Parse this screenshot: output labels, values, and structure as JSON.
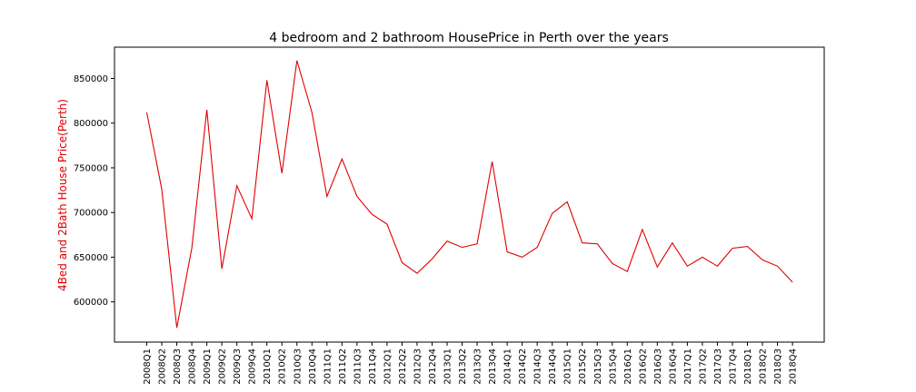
{
  "chart_data": {
    "type": "line",
    "title": "4 bedroom and 2 bathroom HousePrice in Perth over the years",
    "ylabel": "4Bed and 2Bath House Price(Perth)",
    "ylim": [
      555000,
      885000
    ],
    "yticks": [
      600000,
      650000,
      700000,
      750000,
      800000,
      850000
    ],
    "ytick_labels": [
      "600000",
      "650000",
      "700000",
      "750000",
      "800000",
      "850000"
    ],
    "grid": false,
    "line_color": "#e00000",
    "label_color": "#e00000",
    "categories": [
      "2008Q1",
      "2008Q2",
      "2008Q3",
      "2008Q4",
      "2009Q1",
      "2009Q2",
      "2009Q3",
      "2009Q4",
      "2010Q1",
      "2010Q2",
      "2010Q3",
      "2010Q4",
      "2011Q1",
      "2011Q2",
      "2011Q3",
      "2011Q4",
      "2012Q1",
      "2012Q2",
      "2012Q3",
      "2012Q4",
      "2013Q1",
      "2013Q2",
      "2013Q3",
      "2013Q4",
      "2014Q1",
      "2014Q2",
      "2014Q3",
      "2014Q4",
      "2015Q1",
      "2015Q2",
      "2015Q3",
      "2015Q4",
      "2016Q1",
      "2016Q2",
      "2016Q3",
      "2016Q4",
      "2017Q1",
      "2017Q2",
      "2017Q3",
      "2017Q4",
      "2018Q1",
      "2018Q2",
      "2018Q3",
      "2018Q4"
    ],
    "series": [
      {
        "values": [
          812000,
          726000,
          571000,
          660000,
          815000,
          637000,
          730000,
          693000,
          848000,
          744000,
          870000,
          812000,
          718000,
          760000,
          718000,
          698000,
          687000,
          644000,
          632000,
          648000,
          668000,
          661000,
          665000,
          757000,
          656000,
          650000,
          661000,
          699000,
          712000,
          666000,
          665000,
          643000,
          634000,
          681000,
          639000,
          666000,
          640000,
          650000,
          640000,
          660000,
          662000,
          647000,
          640000,
          622000
        ]
      }
    ]
  }
}
